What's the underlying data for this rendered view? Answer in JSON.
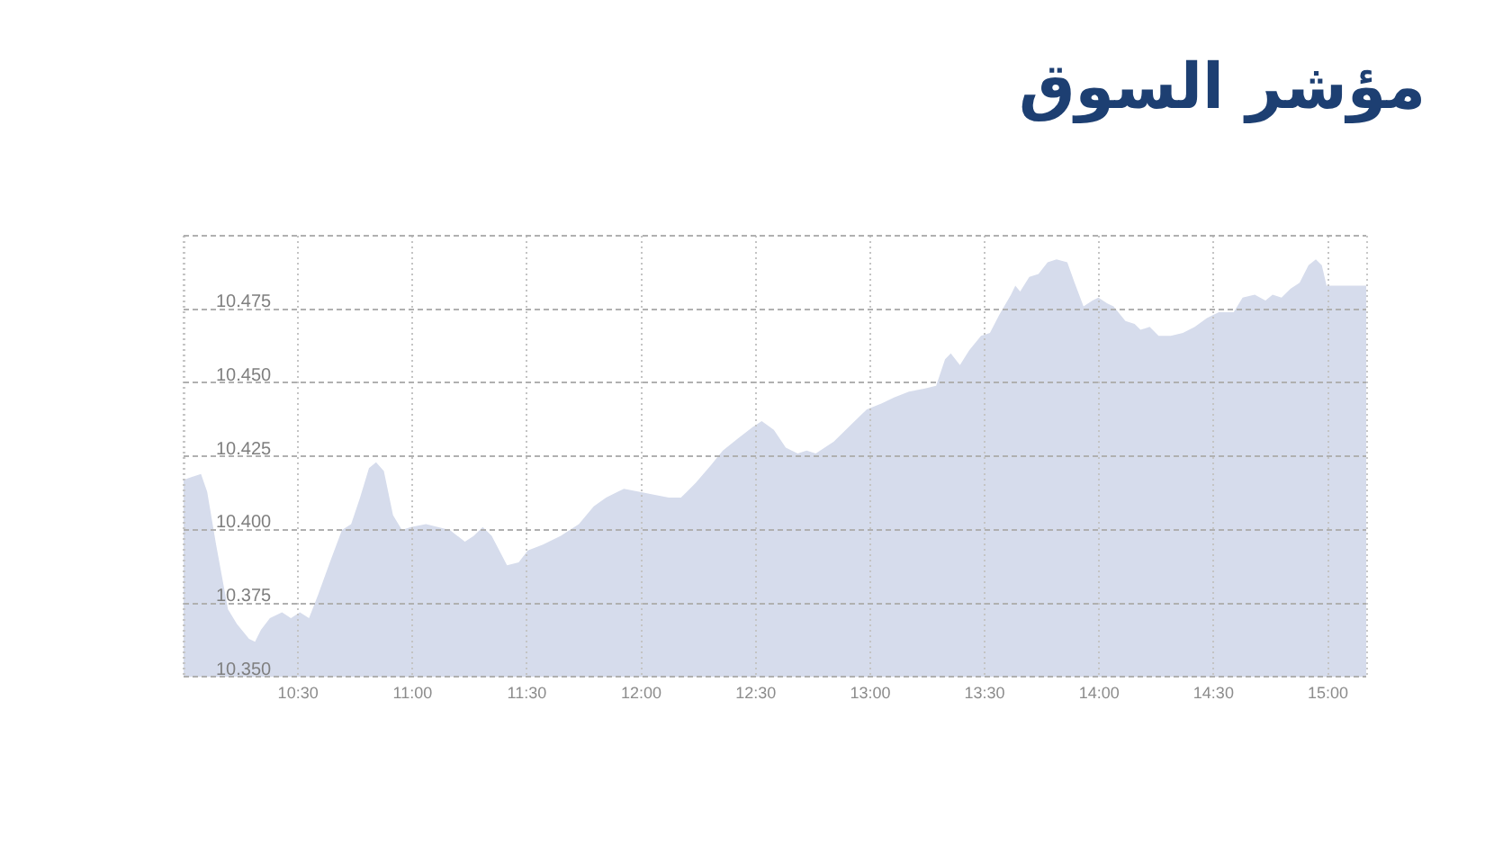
{
  "chart_data": {
    "type": "area",
    "title": "مؤشر السوق",
    "x": [
      10.0,
      10.037,
      10.076,
      10.103,
      10.142,
      10.194,
      10.233,
      10.286,
      10.312,
      10.338,
      10.377,
      10.43,
      10.469,
      10.508,
      10.548,
      10.588,
      10.639,
      10.692,
      10.732,
      10.771,
      10.81,
      10.841,
      10.875,
      10.915,
      10.954,
      10.993,
      11.059,
      11.111,
      11.163,
      11.229,
      11.268,
      11.307,
      11.346,
      11.386,
      11.413,
      11.464,
      11.504,
      11.57,
      11.648,
      11.727,
      11.792,
      11.846,
      11.897,
      11.924,
      11.99,
      12.054,
      12.12,
      12.173,
      12.238,
      12.304,
      12.356,
      12.421,
      12.487,
      12.526,
      12.579,
      12.631,
      12.683,
      12.722,
      12.762,
      12.841,
      12.919,
      12.985,
      13.051,
      13.104,
      13.169,
      13.235,
      13.288,
      13.327,
      13.352,
      13.392,
      13.432,
      13.484,
      13.523,
      13.563,
      13.615,
      13.634,
      13.655,
      13.695,
      13.735,
      13.775,
      13.814,
      13.861,
      13.893,
      13.932,
      13.971,
      13.997,
      14.036,
      14.063,
      14.115,
      14.155,
      14.181,
      14.221,
      14.26,
      14.313,
      14.366,
      14.418,
      14.471,
      14.523,
      14.588,
      14.627,
      14.68,
      14.727,
      14.758,
      14.797,
      14.837,
      14.876,
      14.915,
      14.947,
      14.973,
      14.994,
      15.167
    ],
    "values": [
      10.417,
      10.418,
      10.419,
      10.413,
      10.395,
      10.373,
      10.368,
      10.363,
      10.362,
      10.366,
      10.37,
      10.372,
      10.37,
      10.372,
      10.37,
      10.378,
      10.389,
      10.4,
      10.402,
      10.411,
      10.421,
      10.423,
      10.42,
      10.405,
      10.4,
      10.401,
      10.402,
      10.401,
      10.4,
      10.396,
      10.398,
      10.401,
      10.398,
      10.392,
      10.388,
      10.389,
      10.393,
      10.395,
      10.398,
      10.402,
      10.408,
      10.411,
      10.413,
      10.414,
      10.413,
      10.412,
      10.411,
      10.411,
      10.416,
      10.422,
      10.427,
      10.431,
      10.435,
      10.437,
      10.434,
      10.428,
      10.426,
      10.427,
      10.426,
      10.43,
      10.436,
      10.441,
      10.443,
      10.445,
      10.447,
      10.448,
      10.449,
      10.458,
      10.46,
      10.456,
      10.461,
      10.466,
      10.467,
      10.473,
      10.48,
      10.483,
      10.481,
      10.486,
      10.487,
      10.491,
      10.492,
      10.491,
      10.484,
      10.476,
      10.478,
      10.479,
      10.477,
      10.476,
      10.471,
      10.47,
      10.468,
      10.469,
      10.466,
      10.466,
      10.467,
      10.469,
      10.472,
      10.474,
      10.474,
      10.479,
      10.48,
      10.478,
      10.48,
      10.479,
      10.482,
      10.484,
      10.49,
      10.492,
      10.49,
      10.483,
      10.483
    ],
    "color": "#d6dcec",
    "xlim": [
      10,
      15.167
    ],
    "xticks": [
      {
        "value": 10,
        "label": null
      },
      {
        "value": 10.5,
        "label": "10:30"
      },
      {
        "value": 11,
        "label": "11:00"
      },
      {
        "value": 11.5,
        "label": "11:30"
      },
      {
        "value": 12,
        "label": "12:00"
      },
      {
        "value": 12.5,
        "label": "12:30"
      },
      {
        "value": 13,
        "label": "13:00"
      },
      {
        "value": 13.5,
        "label": "13:30"
      },
      {
        "value": 14,
        "label": "14:00"
      },
      {
        "value": 14.5,
        "label": "14:30"
      },
      {
        "value": 15,
        "label": "15:00"
      }
    ],
    "ylim": [
      10.35,
      10.5
    ],
    "yticks": [
      {
        "value": 10.35,
        "label": "10.350"
      },
      {
        "value": 10.375,
        "label": "10.375"
      },
      {
        "value": 10.4,
        "label": "10.400"
      },
      {
        "value": 10.425,
        "label": "10.425"
      },
      {
        "value": 10.45,
        "label": "10.450"
      },
      {
        "value": 10.475,
        "label": "10.475"
      },
      {
        "value": 10.5,
        "label": null
      }
    ],
    "grid": true
  }
}
